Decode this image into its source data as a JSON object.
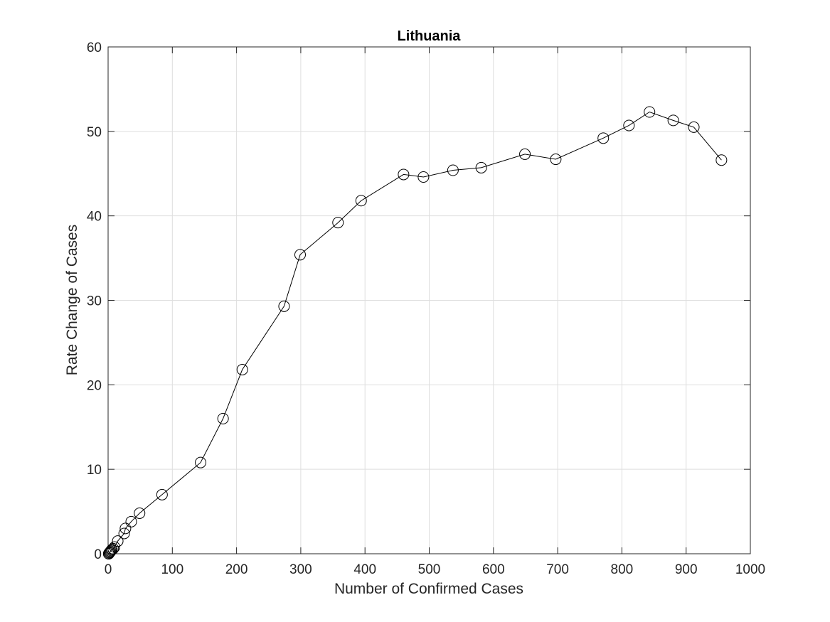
{
  "chart_data": {
    "type": "line",
    "title": "Lithuania",
    "xlabel": "Number of Confirmed Cases",
    "ylabel": "Rate Change of Cases",
    "xlim": [
      0,
      1000
    ],
    "ylim": [
      0,
      60
    ],
    "xticks": [
      0,
      100,
      200,
      300,
      400,
      500,
      600,
      700,
      800,
      900,
      1000
    ],
    "yticks": [
      0,
      10,
      20,
      30,
      40,
      50,
      60
    ],
    "grid": true,
    "marker": "open-circle",
    "line_color": "#000000",
    "series": [
      {
        "x": [
          1,
          1,
          2,
          2,
          3,
          3,
          4,
          5,
          6,
          8,
          10,
          15,
          25,
          27,
          36,
          49,
          84,
          144,
          179,
          209,
          274,
          299,
          358,
          394,
          460,
          491,
          537,
          581,
          649,
          697,
          771,
          811,
          843,
          880,
          912,
          955
        ],
        "y": [
          0.0,
          0.0,
          0.1,
          0.1,
          0.2,
          0.2,
          0.3,
          0.4,
          0.5,
          0.6,
          0.8,
          1.5,
          2.4,
          3.0,
          3.8,
          4.8,
          7.0,
          10.8,
          16.0,
          21.8,
          29.3,
          35.4,
          39.2,
          41.8,
          44.9,
          44.6,
          45.4,
          45.7,
          47.3,
          46.7,
          49.2,
          50.7,
          52.3,
          51.3,
          50.5,
          46.6
        ]
      }
    ]
  }
}
